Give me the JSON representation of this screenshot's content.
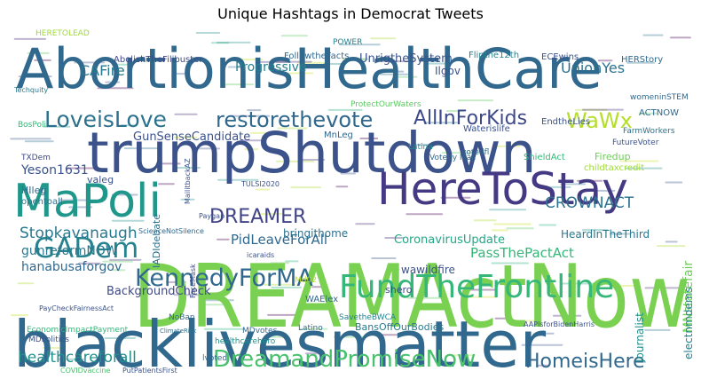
{
  "chart_data": {
    "type": "wordcloud",
    "title": "Unique Hashtags in Democrat Tweets",
    "palette": [
      "#440154",
      "#472d7b",
      "#3b528b",
      "#2c728e",
      "#21918c",
      "#28ae80",
      "#5ec962",
      "#addc30",
      "#c8e020"
    ],
    "words": [
      {
        "text": "DREAMActNow",
        "color": "#7ad151"
      },
      {
        "text": "blacklivesmatter",
        "color": "#31688e"
      },
      {
        "text": "AbortionisHealthCare",
        "color": "#31688e"
      },
      {
        "text": "trumpShutdown",
        "color": "#3b528b"
      },
      {
        "text": "MaPoli",
        "color": "#1f988b"
      },
      {
        "text": "HereToStay",
        "color": "#443983"
      },
      {
        "text": "FundTheFrontline",
        "color": "#35b779"
      },
      {
        "text": "DreamandPromiseNow",
        "color": "#4ac16d"
      },
      {
        "text": "GADem",
        "color": "#26828e"
      },
      {
        "text": "KennedyForMA",
        "color": "#31688e"
      },
      {
        "text": "LoveisLove",
        "color": "#2c728e"
      },
      {
        "text": "restorethevote",
        "color": "#31688e"
      },
      {
        "text": "AllInForKids",
        "color": "#3e4989"
      },
      {
        "text": "WaWx",
        "color": "#b5de2b"
      },
      {
        "text": "DREAMER",
        "color": "#414487"
      },
      {
        "text": "HomeisHere",
        "color": "#31688e"
      },
      {
        "text": "healthcareforall",
        "color": "#21918c"
      },
      {
        "text": "Stopkavanaugh",
        "color": "#2a788e"
      },
      {
        "text": "CROWNACT",
        "color": "#2c728e"
      },
      {
        "text": "UnionYes",
        "color": "#2c728e"
      },
      {
        "text": "CAFire",
        "color": "#2a788e"
      },
      {
        "text": "PidLeaveForAll",
        "color": "#31688e"
      },
      {
        "text": "PassThePactAct",
        "color": "#35b779"
      },
      {
        "text": "Yeson1631",
        "color": "#3b528b"
      },
      {
        "text": "MNstatefair",
        "color": "#6ece58"
      },
      {
        "text": "hanabusaforgov",
        "color": "#31688e"
      },
      {
        "text": "gunreformNOW",
        "color": "#2a788e"
      },
      {
        "text": "Progressive",
        "color": "#26828e"
      },
      {
        "text": "UnrigtheSystem",
        "color": "#3b528b"
      },
      {
        "text": "CoronavirusUpdate",
        "color": "#22a884"
      },
      {
        "text": "GunSenseCandidate",
        "color": "#3b528b"
      },
      {
        "text": "BackgroundCheck",
        "color": "#3e4989"
      },
      {
        "text": "bringithome",
        "color": "#2c728e"
      },
      {
        "text": "wawildfire",
        "color": "#3b528b"
      },
      {
        "text": "HeardInTheThird",
        "color": "#2a788e"
      },
      {
        "text": "electnmdems",
        "color": "#26828e"
      },
      {
        "text": "Journalist",
        "color": "#21918c"
      },
      {
        "text": "BansOffOurBodies",
        "color": "#2a788e"
      },
      {
        "text": "AbolishTheFilibuster",
        "color": "#3e4989"
      },
      {
        "text": "FollowtheFacts",
        "color": "#31688e"
      },
      {
        "text": "Flipthe12th",
        "color": "#26828e"
      },
      {
        "text": "ECEwins",
        "color": "#3b528b"
      },
      {
        "text": "HERStory",
        "color": "#31688e"
      },
      {
        "text": "Ilgov",
        "color": "#3b528b"
      },
      {
        "text": "MnLeg",
        "color": "#31688e"
      },
      {
        "text": "valeg",
        "color": "#3b528b"
      },
      {
        "text": "HIleg",
        "color": "#31688e"
      },
      {
        "text": "opentoall",
        "color": "#2c728e"
      },
      {
        "text": "ScienceNotSilence",
        "color": "#31688e"
      },
      {
        "text": "Paygap",
        "color": "#3b528b"
      },
      {
        "text": "TULSI2020",
        "color": "#3b528b"
      },
      {
        "text": "Latina",
        "color": "#21918c"
      },
      {
        "text": "votedfl",
        "color": "#31688e"
      },
      {
        "text": "Firedup",
        "color": "#6ece58"
      },
      {
        "text": "childtaxcredit",
        "color": "#a0da39"
      },
      {
        "text": "ACTNOW",
        "color": "#31688e"
      },
      {
        "text": "FutureVoter",
        "color": "#3b528b"
      },
      {
        "text": "FarmWorkers",
        "color": "#2c728e"
      },
      {
        "text": "shero",
        "color": "#3e4989"
      },
      {
        "text": "WAElex",
        "color": "#31688e"
      },
      {
        "text": "SavetheBWCA",
        "color": "#26828e"
      },
      {
        "text": "PayCheckFairnessAct",
        "color": "#3b528b"
      },
      {
        "text": "EconomicImpactPayment",
        "color": "#35b779"
      },
      {
        "text": "MDPolitics",
        "color": "#3b528b"
      },
      {
        "text": "healthcarehero",
        "color": "#21918c"
      },
      {
        "text": "NoBan",
        "color": "#31688e"
      },
      {
        "text": "MDvotes",
        "color": "#31688e"
      },
      {
        "text": "Latino",
        "color": "#31688e"
      },
      {
        "text": "AAPIsforBidenHarris",
        "color": "#3b528b"
      },
      {
        "text": "COVIDvaccine",
        "color": "#4ac16d"
      },
      {
        "text": "PutPatientsFirst",
        "color": "#3b528b"
      },
      {
        "text": "HERETOLEAD",
        "color": "#a0da39"
      },
      {
        "text": "POWER",
        "color": "#26828e"
      },
      {
        "text": "Techquity",
        "color": "#2a788e"
      },
      {
        "text": "TXDem",
        "color": "#3e4989"
      },
      {
        "text": "BosPoli",
        "color": "#35b779"
      },
      {
        "text": "IADIdebate",
        "color": "#2c728e"
      },
      {
        "text": "FaceMask",
        "color": "#3e4989"
      },
      {
        "text": "ShieldAct",
        "color": "#35b779"
      },
      {
        "text": "EndtheLies",
        "color": "#3b528b"
      },
      {
        "text": "Waterislife",
        "color": "#3b528b"
      },
      {
        "text": "lvoted",
        "color": "#31688e"
      },
      {
        "text": "Md02",
        "color": "#b5de2b"
      },
      {
        "text": "womeninSTEM",
        "color": "#31688e"
      },
      {
        "text": "Voteby Mail",
        "color": "#31688e"
      },
      {
        "text": "ProtectOurWaters",
        "color": "#5ec962"
      },
      {
        "text": "icaraids",
        "color": "#3b528b"
      },
      {
        "text": "MailitbackAZ",
        "color": "#3b528b"
      },
      {
        "text": "ClimateRisk",
        "color": "#2c728e"
      }
    ]
  }
}
